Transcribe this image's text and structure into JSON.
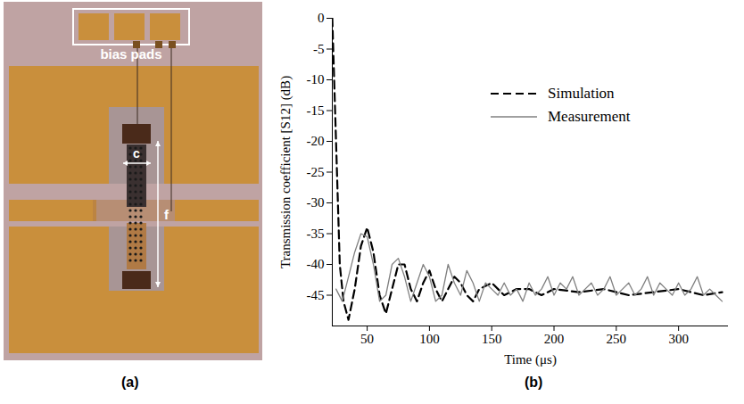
{
  "image_panel": {
    "label": "(a)",
    "annotations": {
      "bias_pads": "bias pads",
      "c": "c",
      "f": "f"
    }
  },
  "chart_data": {
    "type": "line",
    "panel_label": "(b)",
    "x_label": "Time (μs)",
    "y_label": "Transmission coefficient [S12] (dB)",
    "xlim": [
      22,
      340
    ],
    "xticks": [
      50,
      100,
      150,
      200,
      250,
      300
    ],
    "ylim": [
      -50,
      0
    ],
    "yticks": [
      0,
      -5,
      -10,
      -15,
      -20,
      -25,
      -30,
      -35,
      -40,
      -45
    ],
    "legend": "upper right",
    "series": [
      {
        "name": "Simulation",
        "color": "#000000",
        "line_style": "dashed",
        "x": [
          22,
          25,
          28,
          31,
          35,
          40,
          45,
          50,
          55,
          60,
          65,
          70,
          75,
          80,
          85,
          90,
          95,
          100,
          105,
          110,
          115,
          120,
          125,
          130,
          135,
          140,
          150,
          160,
          170,
          180,
          190,
          200,
          220,
          240,
          260,
          280,
          300,
          320,
          335
        ],
        "values": [
          0,
          -20,
          -40,
          -46,
          -49,
          -44,
          -37,
          -34,
          -38,
          -45,
          -48,
          -44,
          -40,
          -40,
          -44,
          -46,
          -43,
          -41,
          -44,
          -46,
          -44,
          -42,
          -43,
          -45,
          -46,
          -44,
          -43,
          -45,
          -44,
          -44,
          -45,
          -44,
          -44.5,
          -44,
          -45,
          -44.5,
          -44,
          -45,
          -44.5
        ]
      },
      {
        "name": "Measurement",
        "color": "#808080",
        "line_style": "solid",
        "x": [
          25,
          30,
          35,
          40,
          45,
          50,
          55,
          60,
          65,
          70,
          75,
          80,
          85,
          90,
          95,
          100,
          105,
          110,
          115,
          120,
          125,
          130,
          135,
          140,
          145,
          150,
          155,
          160,
          165,
          170,
          175,
          180,
          185,
          190,
          195,
          200,
          205,
          210,
          215,
          220,
          225,
          230,
          235,
          240,
          245,
          250,
          255,
          260,
          265,
          270,
          275,
          280,
          285,
          290,
          295,
          300,
          305,
          310,
          315,
          320,
          325,
          330,
          335
        ],
        "values": [
          -44,
          -46,
          -42,
          -38,
          -35,
          -35.5,
          -40,
          -46,
          -45,
          -40,
          -39,
          -42,
          -46,
          -43,
          -40,
          -42,
          -46,
          -45,
          -40,
          -43,
          -45,
          -41,
          -43,
          -46,
          -43,
          -44,
          -45,
          -43,
          -45,
          -44,
          -46,
          -43,
          -45,
          -44,
          -42,
          -45,
          -43,
          -44,
          -42,
          -45,
          -44,
          -43,
          -45,
          -44,
          -42,
          -45,
          -44,
          -43,
          -45,
          -44,
          -42,
          -45,
          -43,
          -44,
          -45,
          -43,
          -45,
          -44,
          -42,
          -45,
          -44,
          -45,
          -46
        ]
      }
    ]
  }
}
